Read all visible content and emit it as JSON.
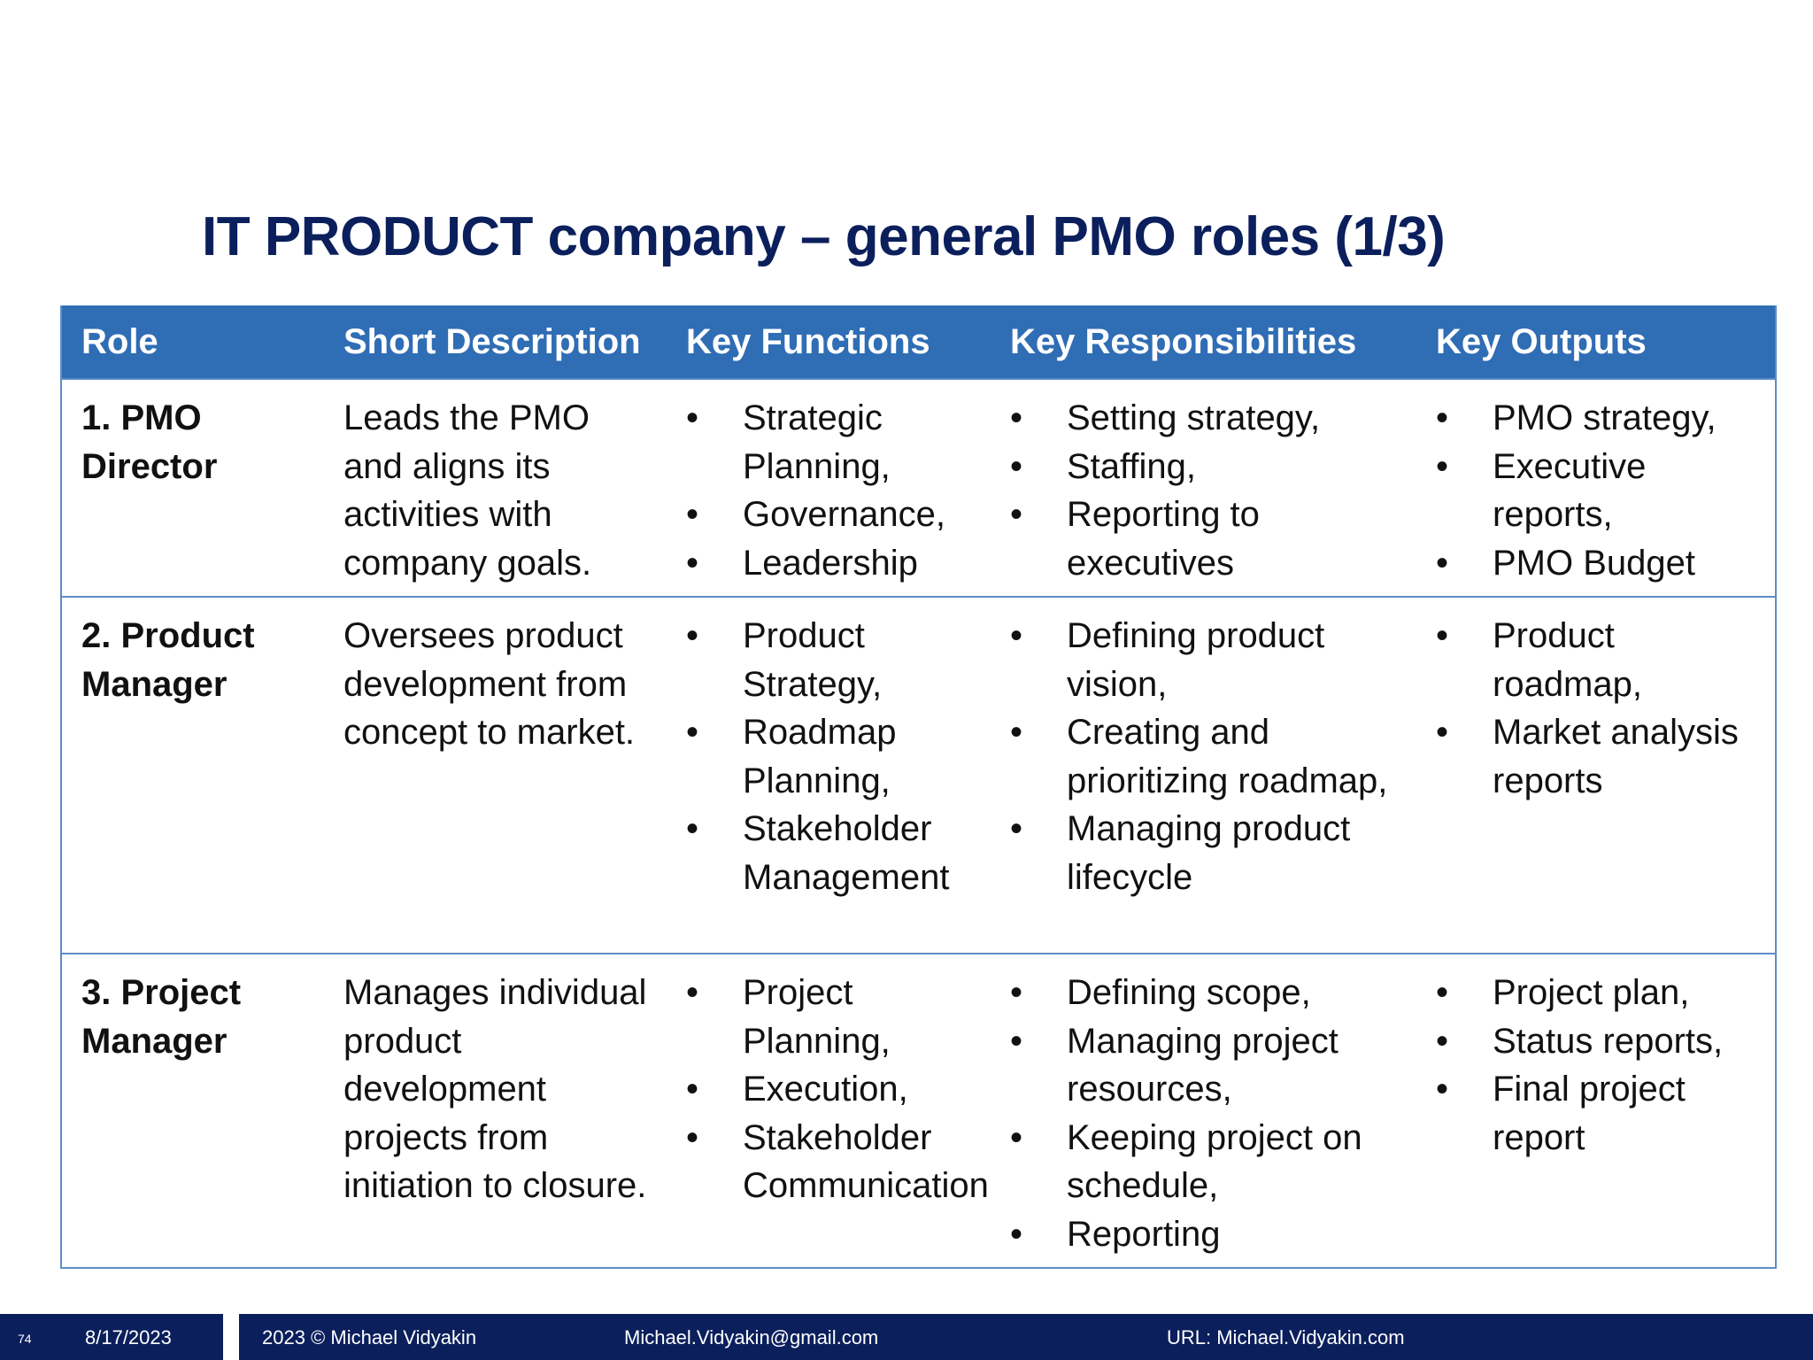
{
  "slide": {
    "title": "IT PRODUCT company – general PMO roles (1/3)"
  },
  "table": {
    "headers": [
      "Role",
      "Short Description",
      "Key Functions",
      "Key Responsibilities",
      "Key Outputs"
    ],
    "rows": [
      {
        "role": "1. PMO Director",
        "description": "Leads the PMO and aligns its activities with company goals.",
        "functions": [
          "Strategic Planning,",
          "Governance,",
          "Leadership"
        ],
        "responsibilities": [
          "Setting strategy,",
          "Staffing,",
          "Reporting to executives"
        ],
        "outputs": [
          "PMO strategy,",
          "Executive reports,",
          "PMO Budget"
        ]
      },
      {
        "role": "2. Product Manager",
        "description": "Oversees product development from concept to market.",
        "functions": [
          "Product Strategy,",
          "Roadmap Planning,",
          "Stakeholder Management"
        ],
        "responsibilities": [
          "Defining product vision,",
          "Creating and prioritizing roadmap,",
          "Managing product lifecycle"
        ],
        "outputs": [
          "Product roadmap,",
          "Market analysis reports"
        ]
      },
      {
        "role": "3. Project Manager",
        "description": "Manages individual product development projects from initiation to closure.",
        "functions": [
          "Project Planning,",
          "Execution,",
          "Stakeholder Communication"
        ],
        "responsibilities": [
          "Defining scope,",
          "Managing project resources,",
          "Keeping project on schedule,",
          "Reporting"
        ],
        "outputs": [
          "Project plan,",
          "Status reports,",
          "Final project report"
        ]
      }
    ]
  },
  "footer": {
    "page_number": "74",
    "date": "8/17/2023",
    "copyright": "2023 © Michael Vidyakin",
    "email": "Michael.Vidyakin@gmail.com",
    "url": "URL: Michael.Vidyakin.com"
  },
  "colors": {
    "title": "#0b1f5c",
    "header_bg": "#2f6db5",
    "footer_bg": "#0b1f5c",
    "grid_line": "#5f8cc7"
  }
}
